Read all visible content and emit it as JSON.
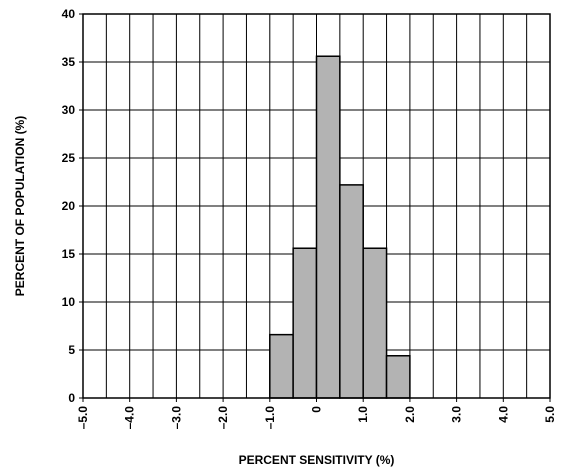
{
  "chart_data": {
    "type": "bar",
    "title": "",
    "xlabel": "PERCENT SENSITIVITY (%)",
    "ylabel": "PERCENT OF POPULATION (%)",
    "xlim": [
      -5.0,
      5.0
    ],
    "ylim": [
      0,
      40
    ],
    "x_ticks": [
      -5.0,
      -4.0,
      -3.0,
      -2.0,
      -1.0,
      0,
      1.0,
      2.0,
      3.0,
      4.0,
      5.0
    ],
    "x_tick_labels": [
      "–5.0",
      "–4.0",
      "–3.0",
      "–2.0",
      "–1.0",
      "0",
      "1.0",
      "2.0",
      "3.0",
      "4.0",
      "5.0"
    ],
    "y_ticks": [
      0,
      5,
      10,
      15,
      20,
      25,
      30,
      35,
      40
    ],
    "y_tick_labels": [
      "0",
      "5",
      "10",
      "15",
      "20",
      "25",
      "30",
      "35",
      "40"
    ],
    "grid": true,
    "bin_width": 0.5,
    "bins": [
      {
        "x0": -1.0,
        "x1": -0.5,
        "value": 6.6
      },
      {
        "x0": -0.5,
        "x1": 0.0,
        "value": 15.6
      },
      {
        "x0": 0.0,
        "x1": 0.5,
        "value": 35.6
      },
      {
        "x0": 0.5,
        "x1": 1.0,
        "value": 22.2
      },
      {
        "x0": 1.0,
        "x1": 1.5,
        "value": 15.6
      },
      {
        "x0": 1.5,
        "x1": 2.0,
        "value": 4.4
      }
    ],
    "bar_color": "#b3b3b3",
    "edge_color": "#000000"
  }
}
